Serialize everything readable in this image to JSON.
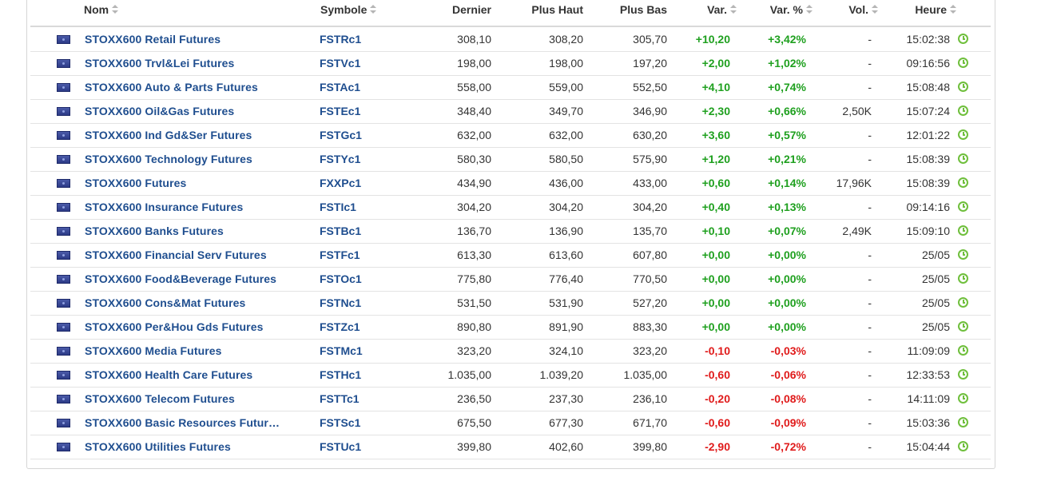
{
  "table": {
    "headers": {
      "name": "Nom",
      "symbol": "Symbole",
      "last": "Dernier",
      "high": "Plus Haut",
      "low": "Plus Bas",
      "change": "Var.",
      "change_pct": "Var. %",
      "volume": "Vol.",
      "time": "Heure"
    },
    "rows": [
      {
        "name": "STOXX600 Retail Futures",
        "symbol": "FSTRc1",
        "last": "308,10",
        "high": "308,20",
        "low": "305,70",
        "change": "+10,20",
        "change_pct": "+3,42%",
        "volume": "-",
        "time": "15:02:38",
        "direction": "up"
      },
      {
        "name": "STOXX600 Trvl&Lei Futures",
        "symbol": "FSTVc1",
        "last": "198,00",
        "high": "198,00",
        "low": "197,20",
        "change": "+2,00",
        "change_pct": "+1,02%",
        "volume": "-",
        "time": "09:16:56",
        "direction": "up"
      },
      {
        "name": "STOXX600 Auto & Parts Futures",
        "symbol": "FSTAc1",
        "last": "558,00",
        "high": "559,00",
        "low": "552,50",
        "change": "+4,10",
        "change_pct": "+0,74%",
        "volume": "-",
        "time": "15:08:48",
        "direction": "up"
      },
      {
        "name": "STOXX600 Oil&Gas Futures",
        "symbol": "FSTEc1",
        "last": "348,40",
        "high": "349,70",
        "low": "346,90",
        "change": "+2,30",
        "change_pct": "+0,66%",
        "volume": "2,50K",
        "time": "15:07:24",
        "direction": "up"
      },
      {
        "name": "STOXX600 Ind Gd&Ser Futures",
        "symbol": "FSTGc1",
        "last": "632,00",
        "high": "632,00",
        "low": "630,20",
        "change": "+3,60",
        "change_pct": "+0,57%",
        "volume": "-",
        "time": "12:01:22",
        "direction": "up"
      },
      {
        "name": "STOXX600 Technology Futures",
        "symbol": "FSTYc1",
        "last": "580,30",
        "high": "580,50",
        "low": "575,90",
        "change": "+1,20",
        "change_pct": "+0,21%",
        "volume": "-",
        "time": "15:08:39",
        "direction": "up"
      },
      {
        "name": "STOXX600 Futures",
        "symbol": "FXXPc1",
        "last": "434,90",
        "high": "436,00",
        "low": "433,00",
        "change": "+0,60",
        "change_pct": "+0,14%",
        "volume": "17,96K",
        "time": "15:08:39",
        "direction": "up"
      },
      {
        "name": "STOXX600 Insurance Futures",
        "symbol": "FSTIc1",
        "last": "304,20",
        "high": "304,20",
        "low": "304,20",
        "change": "+0,40",
        "change_pct": "+0,13%",
        "volume": "-",
        "time": "09:14:16",
        "direction": "up"
      },
      {
        "name": "STOXX600 Banks Futures",
        "symbol": "FSTBc1",
        "last": "136,70",
        "high": "136,90",
        "low": "135,70",
        "change": "+0,10",
        "change_pct": "+0,07%",
        "volume": "2,49K",
        "time": "15:09:10",
        "direction": "up"
      },
      {
        "name": "STOXX600 Financial Serv Futures",
        "symbol": "FSTFc1",
        "last": "613,30",
        "high": "613,60",
        "low": "607,80",
        "change": "+0,00",
        "change_pct": "+0,00%",
        "volume": "-",
        "time": "25/05",
        "direction": "flat"
      },
      {
        "name": "STOXX600 Food&Beverage Futures",
        "symbol": "FSTOc1",
        "last": "775,80",
        "high": "776,40",
        "low": "770,50",
        "change": "+0,00",
        "change_pct": "+0,00%",
        "volume": "-",
        "time": "25/05",
        "direction": "flat"
      },
      {
        "name": "STOXX600 Cons&Mat Futures",
        "symbol": "FSTNc1",
        "last": "531,50",
        "high": "531,90",
        "low": "527,20",
        "change": "+0,00",
        "change_pct": "+0,00%",
        "volume": "-",
        "time": "25/05",
        "direction": "flat"
      },
      {
        "name": "STOXX600 Per&Hou Gds Futures",
        "symbol": "FSTZc1",
        "last": "890,80",
        "high": "891,90",
        "low": "883,30",
        "change": "+0,00",
        "change_pct": "+0,00%",
        "volume": "-",
        "time": "25/05",
        "direction": "flat"
      },
      {
        "name": "STOXX600 Media Futures",
        "symbol": "FSTMc1",
        "last": "323,20",
        "high": "324,10",
        "low": "323,20",
        "change": "-0,10",
        "change_pct": "-0,03%",
        "volume": "-",
        "time": "11:09:09",
        "direction": "down"
      },
      {
        "name": "STOXX600 Health Care Futures",
        "symbol": "FSTHc1",
        "last": "1.035,00",
        "high": "1.039,20",
        "low": "1.035,00",
        "change": "-0,60",
        "change_pct": "-0,06%",
        "volume": "-",
        "time": "12:33:53",
        "direction": "down"
      },
      {
        "name": "STOXX600 Telecom Futures",
        "symbol": "FSTTc1",
        "last": "236,50",
        "high": "237,30",
        "low": "236,10",
        "change": "-0,20",
        "change_pct": "-0,08%",
        "volume": "-",
        "time": "14:11:09",
        "direction": "down"
      },
      {
        "name": "STOXX600 Basic Resources Futur…",
        "symbol": "FSTSc1",
        "last": "675,50",
        "high": "677,30",
        "low": "671,70",
        "change": "-0,60",
        "change_pct": "-0,09%",
        "volume": "-",
        "time": "15:03:36",
        "direction": "down"
      },
      {
        "name": "STOXX600 Utilities Futures",
        "symbol": "FSTUc1",
        "last": "399,80",
        "high": "402,60",
        "low": "399,80",
        "change": "-2,90",
        "change_pct": "-0,72%",
        "volume": "-",
        "time": "15:04:44",
        "direction": "down"
      }
    ]
  },
  "icons": {
    "flag": "eu-flag-icon",
    "clock": "clock-icon",
    "sort": "sort-arrows-icon"
  },
  "colors": {
    "link": "#1f4e8f",
    "positive": "#1fa01f",
    "negative": "#e01b1b",
    "clock": "#6fbf3c"
  }
}
